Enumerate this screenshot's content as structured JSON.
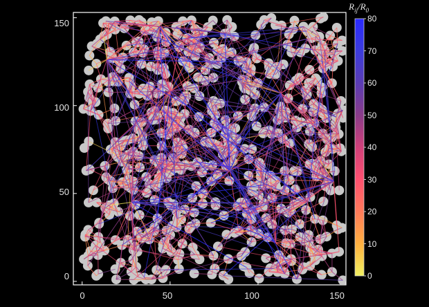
{
  "chart_data": {
    "type": "scatter",
    "title": "",
    "xlabel": "",
    "ylabel": "",
    "xlim": [
      -5,
      150
    ],
    "ylim": [
      -2,
      153
    ],
    "xticks": [
      "0",
      "50",
      "100",
      "150"
    ],
    "yticks": [
      "0",
      "50",
      "100",
      "150"
    ],
    "marker_color": "#c8c8c8",
    "background": "#000000",
    "grid": false,
    "description_points": "disk centers (approximate) of ~600 particles; connection lines drawn between neighboring particles",
    "hubs": [
      {
        "x": 84,
        "y": 63
      },
      {
        "x": 50,
        "y": 108
      },
      {
        "x": 44,
        "y": 145
      },
      {
        "x": 14,
        "y": 126
      },
      {
        "x": 110,
        "y": 22
      },
      {
        "x": 128,
        "y": 45
      },
      {
        "x": 143,
        "y": 57
      },
      {
        "x": 28,
        "y": 45
      },
      {
        "x": 113,
        "y": 107
      },
      {
        "x": 128,
        "y": 138
      }
    ],
    "colorbar": {
      "label_main": "R",
      "label_sub_ij": "ij",
      "label_sep": "/R",
      "label_sub_0": "0",
      "min": 0,
      "max": 80,
      "ticks": [
        "0",
        "10",
        "20",
        "30",
        "40",
        "50",
        "60",
        "70",
        "80"
      ],
      "colormap": [
        "#f0f060",
        "#ffb040",
        "#ff7a5a",
        "#ff5070",
        "#d0407a",
        "#8a3c8a",
        "#5a3cb4",
        "#3c3cdc",
        "#2a2aff"
      ]
    }
  }
}
